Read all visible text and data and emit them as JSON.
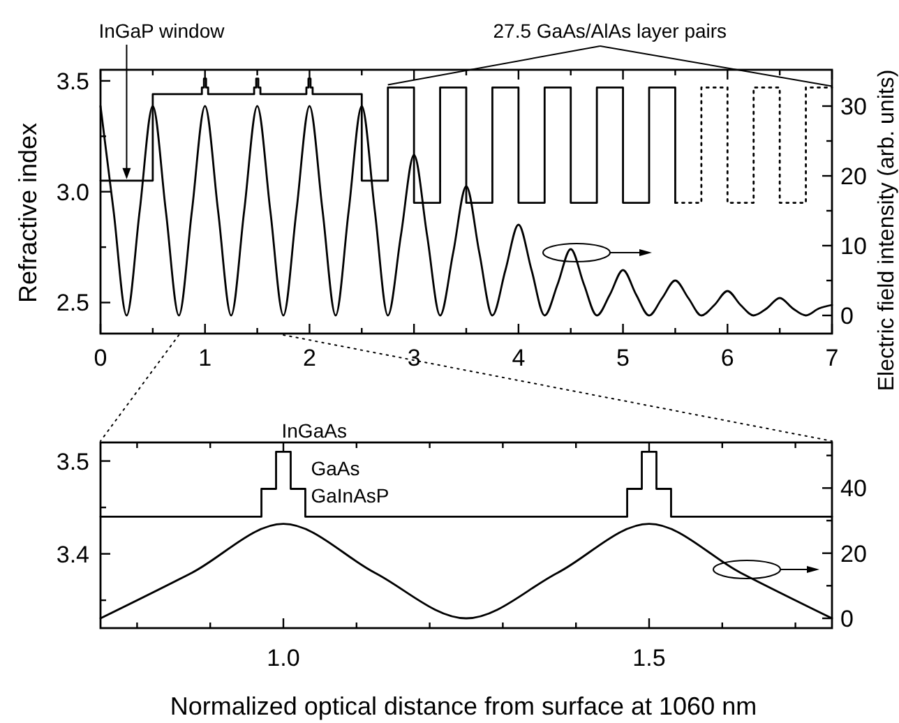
{
  "chart_data": [
    {
      "type": "line",
      "ylabel": "Refractive index",
      "y2label": "Electric field intensity (arb. units)",
      "annotations": [
        {
          "text": "InGaP window",
          "x": 0.25,
          "y": 3.05
        },
        {
          "text": "27.5 GaAs/AlAs layer pairs",
          "x": 2.75,
          "y": 3.47
        }
      ],
      "xlim": [
        0,
        7
      ],
      "xticks": [
        0,
        {
          "value": 0.5,
          "label": null
        },
        1,
        {
          "value": 1.5,
          "label": null
        },
        2,
        {
          "value": 2.5,
          "label": null
        },
        3,
        {
          "value": 3.5,
          "label": null
        },
        4,
        {
          "value": 4.5,
          "label": null
        },
        5,
        {
          "value": 5.5,
          "label": null
        },
        6,
        {
          "value": 6.5,
          "label": null
        },
        7
      ],
      "ylim": [
        2.36,
        3.55
      ],
      "yticks": [
        2.5,
        {
          "value": 2.75,
          "label": null
        },
        {
          "value": 3,
          "label": "3.0"
        },
        {
          "value": 3.25,
          "label": null
        },
        3.5
      ],
      "y2lim": [
        -2.6,
        35.2
      ],
      "y2ticks": [
        0,
        {
          "value": 5,
          "label": null
        },
        10,
        {
          "value": 15,
          "label": null
        },
        20,
        {
          "value": 25,
          "label": null
        },
        30
      ],
      "series": [
        {
          "color": "#000000",
          "x": [
            0,
            0.5,
            0.5,
            0.97,
            0.97,
            0.99,
            0.99,
            1.01,
            1.01,
            1.03,
            1.03,
            1.47,
            1.47,
            1.49,
            1.49,
            1.51,
            1.51,
            1.53,
            1.53,
            1.97,
            1.97,
            1.99,
            1.99,
            2.01,
            2.01,
            2.03,
            2.03,
            2.5,
            2.5,
            2.75
          ],
          "values": [
            3.05,
            3.05,
            3.44,
            3.44,
            3.47,
            3.47,
            3.51,
            3.51,
            3.47,
            3.47,
            3.44,
            3.44,
            3.47,
            3.47,
            3.51,
            3.51,
            3.47,
            3.47,
            3.44,
            3.44,
            3.47,
            3.47,
            3.51,
            3.51,
            3.47,
            3.47,
            3.44,
            3.44,
            3.05,
            3.05
          ]
        },
        {
          "color": "#000000",
          "x": [
            2.75,
            2.75,
            3,
            3,
            3.25,
            3.25,
            3.5,
            3.5,
            3.75,
            3.75,
            4,
            4,
            4.25,
            4.25,
            4.5,
            4.5,
            4.75,
            4.75,
            5,
            5,
            5.25,
            5.25,
            5.5,
            5.5
          ],
          "values": [
            3.05,
            3.47,
            3.47,
            2.95,
            2.95,
            3.47,
            3.47,
            2.95,
            2.95,
            3.47,
            3.47,
            2.95,
            2.95,
            3.47,
            3.47,
            2.95,
            2.95,
            3.47,
            3.47,
            2.95,
            2.95,
            3.47,
            3.47,
            2.95
          ]
        },
        {
          "color": "#000000",
          "line_style": "dotted",
          "x": [
            5.5,
            5.75,
            5.75,
            6,
            6,
            6.25,
            6.25,
            6.5,
            6.5,
            6.75,
            6.75,
            7
          ],
          "values": [
            2.95,
            2.95,
            3.47,
            3.47,
            2.95,
            2.95,
            3.47,
            3.47,
            2.95,
            2.95,
            3.47,
            3.47
          ]
        },
        {
          "color": "#000000",
          "axis": "y2",
          "x": [
            0,
            0.125,
            0.25,
            0.375,
            0.5,
            0.625,
            0.75,
            0.875,
            1,
            1.125,
            1.25,
            1.375,
            1.5,
            1.625,
            1.75,
            1.875,
            2,
            2.125,
            2.25,
            2.375,
            2.5,
            2.625,
            2.75,
            2.875,
            3,
            3.125,
            3.25,
            3.375,
            3.5,
            3.625,
            3.75,
            3.875,
            4,
            4.125,
            4.25,
            4.375,
            4.5,
            4.625,
            4.75,
            4.875,
            5,
            5.125,
            5.25,
            5.375,
            5.5,
            5.625,
            5.75,
            5.875,
            6,
            6.125,
            6.25,
            6.375,
            6.5,
            6.625,
            6.75,
            6.875,
            7
          ],
          "values": [
            30,
            15,
            0,
            15,
            30,
            15,
            0,
            15,
            30,
            15,
            0,
            15,
            30,
            15,
            0,
            15,
            30,
            15,
            0,
            15,
            30,
            15,
            0,
            11.5,
            23,
            11.5,
            0,
            9,
            18.5,
            9,
            0,
            6.5,
            13,
            6.5,
            0,
            4.5,
            9.5,
            4.5,
            0,
            3,
            6.5,
            3,
            0,
            2.5,
            5,
            2.5,
            0,
            1.5,
            3.5,
            1.5,
            0,
            1,
            2.5,
            1,
            0,
            1,
            1.5
          ]
        }
      ]
    },
    {
      "type": "line",
      "xlabel": "Normalized optical distance from surface at 1060 nm",
      "annotations": [
        {
          "text": "InGaAs",
          "x": 0.99,
          "y": 3.51
        },
        {
          "text": "GaAs",
          "x": 1.03,
          "y": 3.47
        },
        {
          "text": "GaInAsP",
          "x": 1.03,
          "y": 3.44
        }
      ],
      "xlim": [
        0.75,
        1.75
      ],
      "xticks": [
        {
          "value": 0.8,
          "label": null
        },
        {
          "value": 0.9,
          "label": null
        },
        {
          "value": 1,
          "label": "1.0"
        },
        {
          "value": 1.1,
          "label": null
        },
        {
          "value": 1.2,
          "label": null
        },
        {
          "value": 1.3,
          "label": null
        },
        {
          "value": 1.4,
          "label": null
        },
        1.5,
        {
          "value": 1.6,
          "label": null
        },
        {
          "value": 1.7,
          "label": null
        }
      ],
      "ylim": [
        3.32,
        3.52
      ],
      "yticks": [
        {
          "value": 3.35,
          "label": null
        },
        3.4,
        {
          "value": 3.45,
          "label": null
        },
        3.5
      ],
      "y2lim": [
        -3,
        54
      ],
      "y2ticks": [
        0,
        {
          "value": 10,
          "label": null
        },
        20,
        {
          "value": 30,
          "label": null
        },
        40,
        {
          "value": 50,
          "label": null
        }
      ],
      "series": [
        {
          "color": "#000000",
          "x": [
            0.75,
            0.97,
            0.97,
            0.99,
            0.99,
            1.01,
            1.01,
            1.03,
            1.03,
            1.47,
            1.47,
            1.49,
            1.49,
            1.51,
            1.51,
            1.53,
            1.53,
            1.75
          ],
          "values": [
            3.44,
            3.44,
            3.47,
            3.47,
            3.51,
            3.51,
            3.47,
            3.47,
            3.44,
            3.44,
            3.47,
            3.47,
            3.51,
            3.51,
            3.47,
            3.47,
            3.44,
            3.44
          ]
        },
        {
          "color": "#000000",
          "axis": "y2",
          "x": [
            0.75,
            0.875,
            1,
            1.125,
            1.25,
            1.375,
            1.5,
            1.625,
            1.75
          ],
          "values": [
            0,
            14,
            29,
            14,
            0,
            14,
            29,
            14,
            0
          ]
        }
      ]
    }
  ]
}
